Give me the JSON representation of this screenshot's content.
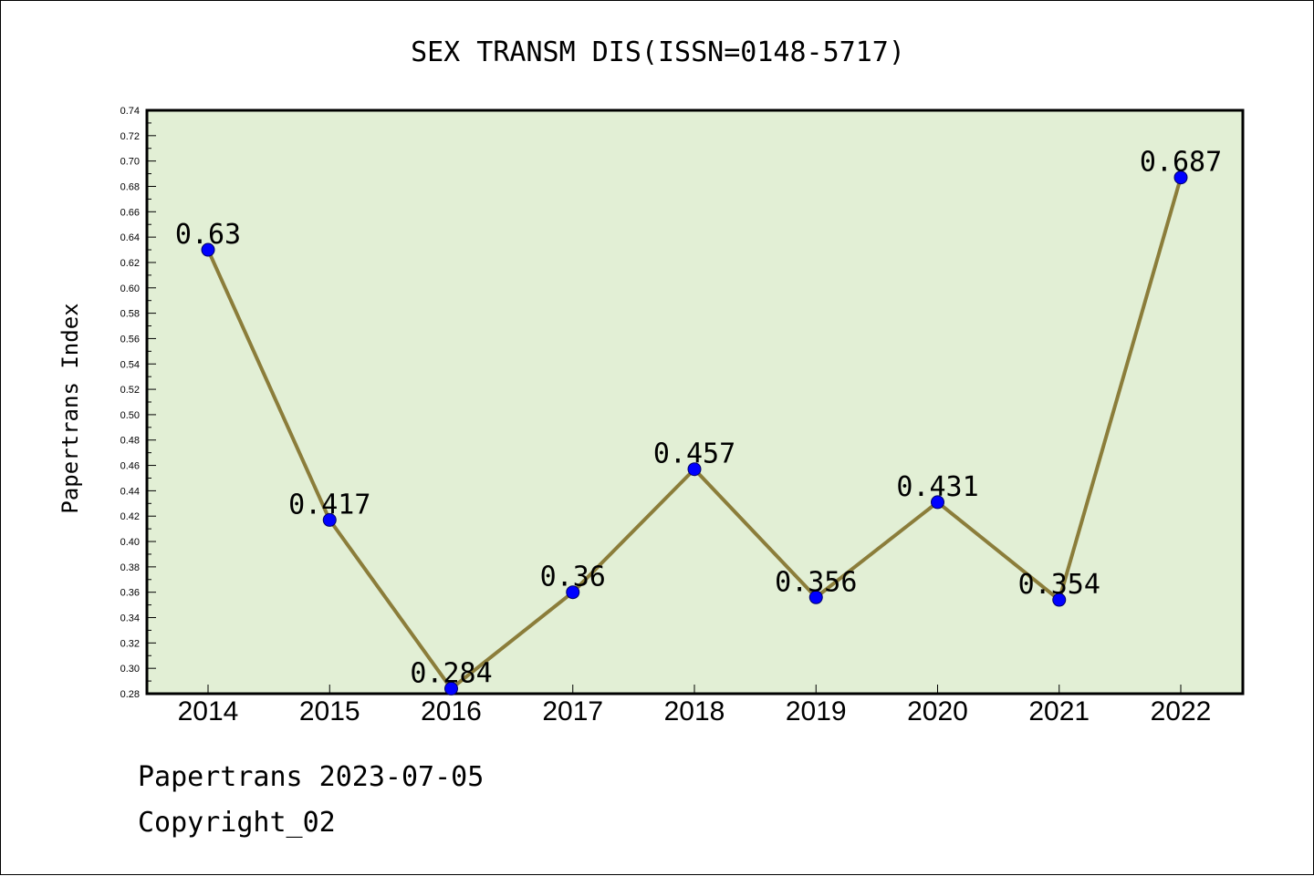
{
  "chart_data": {
    "type": "line",
    "title": "SEX TRANSM DIS(ISSN=0148-5717)",
    "xlabel": "",
    "ylabel": "Papertrans Index",
    "categories": [
      "2014",
      "2015",
      "2016",
      "2017",
      "2018",
      "2019",
      "2020",
      "2021",
      "2022"
    ],
    "series": [
      {
        "values": [
          0.63,
          0.417,
          0.284,
          0.36,
          0.457,
          0.356,
          0.431,
          0.354,
          0.687
        ],
        "labels": [
          "0.63",
          "0.417",
          "0.284",
          "0.36",
          "0.457",
          "0.356",
          "0.431",
          "0.354",
          "0.687"
        ]
      }
    ],
    "ylim": [
      0.28,
      0.74
    ],
    "yticks": [
      "0.28",
      "0.30",
      "0.32",
      "0.34",
      "0.36",
      "0.38",
      "0.40",
      "0.42",
      "0.44",
      "0.46",
      "0.48",
      "0.50",
      "0.52",
      "0.54",
      "0.56",
      "0.58",
      "0.60",
      "0.62",
      "0.64",
      "0.66",
      "0.68",
      "0.70",
      "0.72",
      "0.74"
    ],
    "grid": false,
    "legend": "none"
  },
  "colors": {
    "plot_background": "#e2efd5",
    "line": "#8b7d3a",
    "marker": "#0000ff"
  },
  "footer": {
    "line1": "Papertrans 2023-07-05",
    "line2": "Copyright_02"
  }
}
